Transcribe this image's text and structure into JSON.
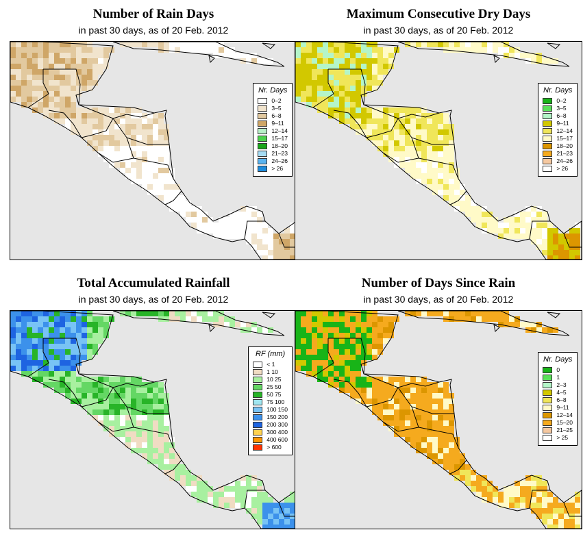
{
  "panels": [
    {
      "title": "Number of Rain Days",
      "subtitle": "in past 30 days, as of  20 Feb. 2012",
      "legend_title": "Nr. Days",
      "palette": "tan",
      "legend": [
        {
          "label": "0–2",
          "color": "#ffffff"
        },
        {
          "label": "3–5",
          "color": "#f1e4cd"
        },
        {
          "label": "6–8",
          "color": "#e2c99f"
        },
        {
          "label": "9–11",
          "color": "#cfa667"
        },
        {
          "label": "12–14",
          "color": "#b8f0c8"
        },
        {
          "label": "15–17",
          "color": "#4cd24c"
        },
        {
          "label": "18–20",
          "color": "#1aa51a"
        },
        {
          "label": "21–23",
          "color": "#a6dcf4"
        },
        {
          "label": "24–26",
          "color": "#5ab4f0"
        },
        {
          "label": "> 26",
          "color": "#1e8cdc"
        }
      ]
    },
    {
      "title": "Maximum Consecutive Dry Days",
      "subtitle": "in past 30 days, as of  20 Feb. 2012",
      "legend_title": "Nr. Days",
      "palette": "dry",
      "legend": [
        {
          "label": "0–2",
          "color": "#18b418"
        },
        {
          "label": "3–5",
          "color": "#5ae15a"
        },
        {
          "label": "6–8",
          "color": "#b4f5c8"
        },
        {
          "label": "9–11",
          "color": "#d2c800"
        },
        {
          "label": "12–14",
          "color": "#f0e65a"
        },
        {
          "label": "15–17",
          "color": "#fffac8"
        },
        {
          "label": "18–20",
          "color": "#dc9600"
        },
        {
          "label": "21–23",
          "color": "#f5aa1e"
        },
        {
          "label": "24–26",
          "color": "#f5c8a0"
        },
        {
          "label": "> 26",
          "color": "#ffffff"
        }
      ]
    },
    {
      "title": "Total Accumulated Rainfall",
      "subtitle": "in past 30 days, as of  20 Feb. 2012",
      "legend_title": "RF (mm)",
      "palette": "rain",
      "legend": [
        {
          "label": "< 1",
          "color": "#ffffff"
        },
        {
          "label": "1   10",
          "color": "#f0dcc3"
        },
        {
          "label": "10   25",
          "color": "#a8f0a0"
        },
        {
          "label": "25   50",
          "color": "#64d764"
        },
        {
          "label": "50   75",
          "color": "#28b428"
        },
        {
          "label": "75   100",
          "color": "#a0e6f0"
        },
        {
          "label": "100   150",
          "color": "#78c3f5"
        },
        {
          "label": "150   200",
          "color": "#3c91eb"
        },
        {
          "label": "200   300",
          "color": "#1e64e1"
        },
        {
          "label": "300   400",
          "color": "#ffd250"
        },
        {
          "label": "400   600",
          "color": "#ff9600"
        },
        {
          "label": "> 600",
          "color": "#ff3200"
        }
      ]
    },
    {
      "title": "Number of Days Since Rain",
      "subtitle": "in past 30 days, as of  20 Feb. 2012",
      "legend_title": "Nr. Days",
      "palette": "since",
      "legend": [
        {
          "label": "0",
          "color": "#18b418"
        },
        {
          "label": "1",
          "color": "#5ae15a"
        },
        {
          "label": "2–3",
          "color": "#b4f5c8"
        },
        {
          "label": "4–5",
          "color": "#d2c800"
        },
        {
          "label": "6–8",
          "color": "#f0e65a"
        },
        {
          "label": "9–11",
          "color": "#fffac8"
        },
        {
          "label": "12–14",
          "color": "#dc9600"
        },
        {
          "label": "15–20",
          "color": "#f5aa1e"
        },
        {
          "label": "21–25",
          "color": "#f5c8a0"
        },
        {
          "label": "> 25",
          "color": "#ffffff"
        }
      ]
    }
  ],
  "colors": {
    "sea": "#e6e6e6",
    "border": "#000000"
  }
}
